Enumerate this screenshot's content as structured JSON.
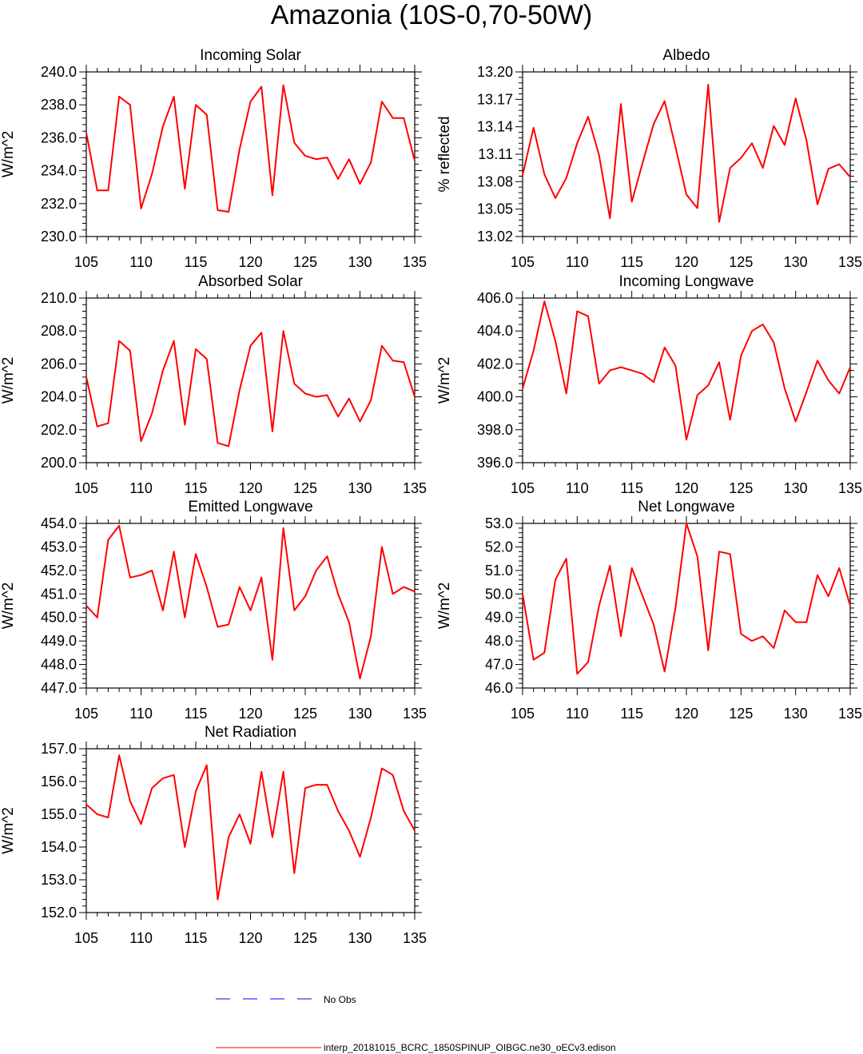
{
  "figure": {
    "title": "Amazonia (10S-0,70-50W)",
    "colors": {
      "model": "#ff0000",
      "obs": "#0000ff",
      "axis": "#000000"
    }
  },
  "legend": {
    "entries": [
      {
        "label": "No Obs",
        "style": "dashed",
        "color": "#0000ff"
      },
      {
        "label": "interp_20181015_BCRC_1850SPINUP_OIBGC.ne30_oECv3.edison",
        "style": "solid",
        "color": "#ff0000"
      }
    ]
  },
  "chart_data": [
    {
      "type": "line",
      "title": "Incoming Solar",
      "xlabel": "",
      "ylabel": "W/m^2",
      "xlim": [
        105,
        135
      ],
      "ylim": [
        230.0,
        240.0
      ],
      "xticks": [
        "105",
        "110",
        "115",
        "120",
        "125",
        "130",
        "135"
      ],
      "yticks": [
        "230.0",
        "232.0",
        "234.0",
        "236.0",
        "238.0",
        "240.0"
      ],
      "x": [
        105,
        106,
        107,
        108,
        109,
        110,
        111,
        112,
        113,
        114,
        115,
        116,
        117,
        118,
        119,
        120,
        121,
        122,
        123,
        124,
        125,
        126,
        127,
        128,
        129,
        130,
        131,
        132,
        133,
        134,
        135
      ],
      "series": [
        {
          "name": "interp_20181015_BCRC_1850SPINUP_OIBGC.ne30_oECv3.edison",
          "values": [
            236.3,
            232.8,
            232.8,
            238.5,
            238.0,
            231.7,
            233.8,
            236.7,
            238.5,
            232.9,
            238.0,
            237.4,
            231.6,
            231.5,
            235.3,
            238.2,
            239.1,
            232.5,
            239.2,
            235.7,
            234.9,
            234.7,
            234.8,
            233.5,
            234.7,
            233.2,
            234.5,
            238.2,
            237.2,
            237.2,
            234.6
          ]
        }
      ]
    },
    {
      "type": "line",
      "title": "Albedo",
      "xlabel": "",
      "ylabel": "% reflected",
      "xlim": [
        105,
        135
      ],
      "ylim": [
        13.02,
        13.2
      ],
      "xticks": [
        "105",
        "110",
        "115",
        "120",
        "125",
        "130",
        "135"
      ],
      "yticks": [
        "13.02",
        "13.05",
        "13.08",
        "13.11",
        "13.14",
        "13.17",
        "13.20"
      ],
      "x": [
        105,
        106,
        107,
        108,
        109,
        110,
        111,
        112,
        113,
        114,
        115,
        116,
        117,
        118,
        119,
        120,
        121,
        122,
        123,
        124,
        125,
        126,
        127,
        128,
        129,
        130,
        131,
        132,
        133,
        134,
        135
      ],
      "series": [
        {
          "name": "interp_20181015_BCRC_1850SPINUP_OIBGC.ne30_oECv3.edison",
          "values": [
            13.087,
            13.139,
            13.088,
            13.062,
            13.084,
            13.122,
            13.151,
            13.109,
            13.04,
            13.165,
            13.058,
            13.101,
            13.143,
            13.168,
            13.118,
            13.066,
            13.051,
            13.186,
            13.036,
            13.095,
            13.106,
            13.122,
            13.095,
            13.141,
            13.12,
            13.171,
            13.125,
            13.055,
            13.094,
            13.099,
            13.085
          ]
        }
      ]
    },
    {
      "type": "line",
      "title": "Absorbed Solar",
      "xlabel": "",
      "ylabel": "W/m^2",
      "xlim": [
        105,
        135
      ],
      "ylim": [
        200.0,
        210.0
      ],
      "xticks": [
        "105",
        "110",
        "115",
        "120",
        "125",
        "130",
        "135"
      ],
      "yticks": [
        "200.0",
        "202.0",
        "204.0",
        "206.0",
        "208.0",
        "210.0"
      ],
      "x": [
        105,
        106,
        107,
        108,
        109,
        110,
        111,
        112,
        113,
        114,
        115,
        116,
        117,
        118,
        119,
        120,
        121,
        122,
        123,
        124,
        125,
        126,
        127,
        128,
        129,
        130,
        131,
        132,
        133,
        134,
        135
      ],
      "series": [
        {
          "name": "interp_20181015_BCRC_1850SPINUP_OIBGC.ne30_oECv3.edison",
          "values": [
            205.2,
            202.2,
            202.4,
            207.4,
            206.8,
            201.3,
            203.0,
            205.6,
            207.4,
            202.3,
            206.9,
            206.3,
            201.2,
            201.0,
            204.4,
            207.1,
            207.9,
            201.9,
            208.0,
            204.8,
            204.2,
            204.0,
            204.1,
            202.8,
            203.9,
            202.5,
            203.8,
            207.1,
            206.2,
            206.1,
            204.0
          ]
        }
      ]
    },
    {
      "type": "line",
      "title": "Incoming Longwave",
      "xlabel": "",
      "ylabel": "W/m^2",
      "xlim": [
        105,
        135
      ],
      "ylim": [
        396.0,
        406.0
      ],
      "xticks": [
        "105",
        "110",
        "115",
        "120",
        "125",
        "130",
        "135"
      ],
      "yticks": [
        "396.0",
        "398.0",
        "400.0",
        "402.0",
        "404.0",
        "406.0"
      ],
      "x": [
        105,
        106,
        107,
        108,
        109,
        110,
        111,
        112,
        113,
        114,
        115,
        116,
        117,
        118,
        119,
        120,
        121,
        122,
        123,
        124,
        125,
        126,
        127,
        128,
        129,
        130,
        131,
        132,
        133,
        134,
        135
      ],
      "series": [
        {
          "name": "interp_20181015_BCRC_1850SPINUP_OIBGC.ne30_oECv3.edison",
          "values": [
            400.5,
            402.8,
            405.8,
            403.4,
            400.2,
            405.2,
            404.9,
            400.8,
            401.6,
            401.8,
            401.6,
            401.4,
            400.9,
            403.0,
            401.9,
            397.4,
            400.1,
            400.7,
            402.1,
            398.6,
            402.5,
            404.0,
            404.4,
            403.3,
            400.5,
            398.5,
            400.3,
            402.2,
            401.0,
            400.2,
            401.8
          ]
        }
      ]
    },
    {
      "type": "line",
      "title": "Emitted Longwave",
      "xlabel": "",
      "ylabel": "W/m^2",
      "xlim": [
        105,
        135
      ],
      "ylim": [
        447.0,
        454.0
      ],
      "xticks": [
        "105",
        "110",
        "115",
        "120",
        "125",
        "130",
        "135"
      ],
      "yticks": [
        "447.0",
        "448.0",
        "449.0",
        "450.0",
        "451.0",
        "452.0",
        "453.0",
        "454.0"
      ],
      "x": [
        105,
        106,
        107,
        108,
        109,
        110,
        111,
        112,
        113,
        114,
        115,
        116,
        117,
        118,
        119,
        120,
        121,
        122,
        123,
        124,
        125,
        126,
        127,
        128,
        129,
        130,
        131,
        132,
        133,
        134,
        135
      ],
      "series": [
        {
          "name": "interp_20181015_BCRC_1850SPINUP_OIBGC.ne30_oECv3.edison",
          "values": [
            450.5,
            450.0,
            453.3,
            453.9,
            451.7,
            451.8,
            452.0,
            450.3,
            452.8,
            450.0,
            452.7,
            451.3,
            449.6,
            449.7,
            451.3,
            450.3,
            451.7,
            448.2,
            453.8,
            450.3,
            450.9,
            452.0,
            452.6,
            451.0,
            449.8,
            447.4,
            449.2,
            453.0,
            451.0,
            451.3,
            451.1
          ]
        }
      ]
    },
    {
      "type": "line",
      "title": "Net Longwave",
      "xlabel": "",
      "ylabel": "W/m^2",
      "xlim": [
        105,
        135
      ],
      "ylim": [
        46.0,
        53.0
      ],
      "xticks": [
        "105",
        "110",
        "115",
        "120",
        "125",
        "130",
        "135"
      ],
      "yticks": [
        "46.0",
        "47.0",
        "48.0",
        "49.0",
        "50.0",
        "51.0",
        "52.0",
        "53.0"
      ],
      "x": [
        105,
        106,
        107,
        108,
        109,
        110,
        111,
        112,
        113,
        114,
        115,
        116,
        117,
        118,
        119,
        120,
        121,
        122,
        123,
        124,
        125,
        126,
        127,
        128,
        129,
        130,
        131,
        132,
        133,
        134,
        135
      ],
      "series": [
        {
          "name": "interp_20181015_BCRC_1850SPINUP_OIBGC.ne30_oECv3.edison",
          "values": [
            50.0,
            47.2,
            47.5,
            50.6,
            51.5,
            46.6,
            47.1,
            49.5,
            51.2,
            48.2,
            51.1,
            49.9,
            48.7,
            46.7,
            49.4,
            53.0,
            51.6,
            47.6,
            51.8,
            51.7,
            48.3,
            48.0,
            48.2,
            47.7,
            49.3,
            48.8,
            48.8,
            50.8,
            49.9,
            51.1,
            49.5
          ]
        }
      ]
    },
    {
      "type": "line",
      "title": "Net Radiation",
      "xlabel": "",
      "ylabel": "W/m^2",
      "xlim": [
        105,
        135
      ],
      "ylim": [
        152.0,
        157.0
      ],
      "xticks": [
        "105",
        "110",
        "115",
        "120",
        "125",
        "130",
        "135"
      ],
      "yticks": [
        "152.0",
        "153.0",
        "154.0",
        "155.0",
        "156.0",
        "157.0"
      ],
      "x": [
        105,
        106,
        107,
        108,
        109,
        110,
        111,
        112,
        113,
        114,
        115,
        116,
        117,
        118,
        119,
        120,
        121,
        122,
        123,
        124,
        125,
        126,
        127,
        128,
        129,
        130,
        131,
        132,
        133,
        134,
        135
      ],
      "series": [
        {
          "name": "interp_20181015_BCRC_1850SPINUP_OIBGC.ne30_oECv3.edison",
          "values": [
            155.3,
            155.0,
            154.9,
            156.8,
            155.4,
            154.7,
            155.8,
            156.1,
            156.2,
            154.0,
            155.7,
            156.5,
            152.4,
            154.3,
            155.0,
            154.1,
            156.3,
            154.3,
            156.3,
            153.2,
            155.8,
            155.9,
            155.9,
            155.1,
            154.5,
            153.7,
            154.9,
            156.4,
            156.2,
            155.1,
            154.5
          ]
        }
      ]
    }
  ]
}
